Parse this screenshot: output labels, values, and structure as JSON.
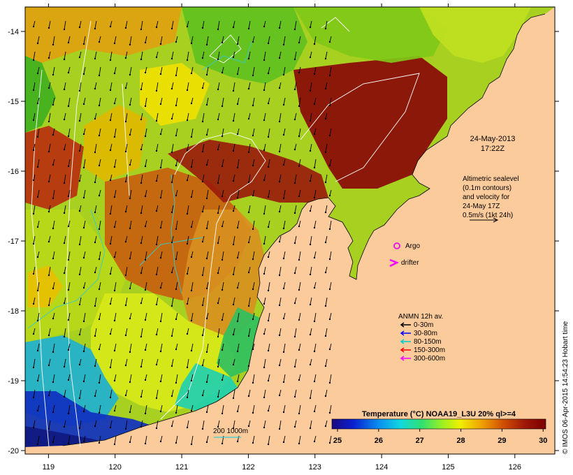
{
  "map": {
    "date_label": "24-May-2013",
    "time_label": "17:22Z",
    "altimetry_lines": [
      "Altimetric sealevel",
      "(0.1m contours)",
      "and velocity for",
      "24-May 17Z",
      "0.5m/s (1kt 24h)"
    ],
    "argo_label": "Argo",
    "drifter_label": "drifter",
    "anmn_title": "ANMN 12h av.",
    "anmn_legend": [
      {
        "label": "0-30m",
        "color": "#000000"
      },
      {
        "label": "30-80m",
        "color": "#0000ff"
      },
      {
        "label": "80-150m",
        "color": "#00cccc"
      },
      {
        "label": "150-300m",
        "color": "#ff0000"
      },
      {
        "label": "300-600m",
        "color": "#ff00ff"
      }
    ],
    "isobath_label": "200  1000m",
    "colorbar_title": "Temperature (°C) NOAA19_L3U 20% ql>=4",
    "colorbar_ticks": [
      "25",
      "26",
      "27",
      "28",
      "29",
      "30"
    ],
    "colorbar_range": [
      25,
      30.2
    ],
    "lon_ticks": [
      "119",
      "120",
      "121",
      "122",
      "123",
      "124",
      "125",
      "126"
    ],
    "lat_ticks": [
      "-14",
      "-15",
      "-16",
      "-17",
      "-18",
      "-19",
      "-20"
    ],
    "lon_range": [
      118.65,
      126.6
    ],
    "lat_range": [
      -20.05,
      -13.65
    ],
    "side_text": "© IMOS 06-Apr-2015 14:54:23 Hobart time",
    "colors": {
      "land": "#fccb9c",
      "argo": "#e020e0",
      "drifter": "#ff00ff",
      "contour": "#ffffff",
      "isobath": "#33cccc"
    }
  }
}
